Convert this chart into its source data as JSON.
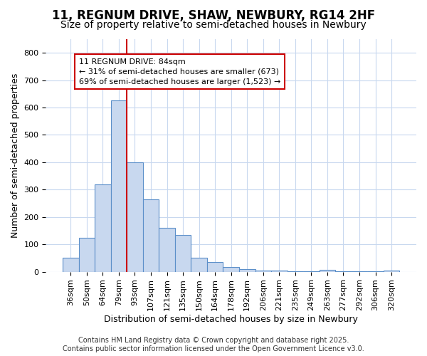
{
  "title_line1": "11, REGNUM DRIVE, SHAW, NEWBURY, RG14 2HF",
  "title_line2": "Size of property relative to semi-detached houses in Newbury",
  "xlabel": "Distribution of semi-detached houses by size in Newbury",
  "ylabel": "Number of semi-detached properties",
  "categories": [
    "36sqm",
    "50sqm",
    "64sqm",
    "79sqm",
    "93sqm",
    "107sqm",
    "121sqm",
    "135sqm",
    "150sqm",
    "164sqm",
    "178sqm",
    "192sqm",
    "206sqm",
    "221sqm",
    "235sqm",
    "249sqm",
    "263sqm",
    "277sqm",
    "292sqm",
    "306sqm",
    "320sqm"
  ],
  "values": [
    50,
    125,
    320,
    625,
    400,
    265,
    160,
    133,
    52,
    35,
    18,
    10,
    4,
    3,
    2,
    1,
    7,
    1,
    1,
    1,
    5
  ],
  "bar_color": "#c8d8ef",
  "bar_edge_color": "#5b8fc9",
  "grid_color": "#c8d8ef",
  "background_color": "#ffffff",
  "red_line_color": "#cc0000",
  "annotation_text": "11 REGNUM DRIVE: 84sqm\n← 31% of semi-detached houses are smaller (673)\n69% of semi-detached houses are larger (1,523) →",
  "annotation_box_color": "#ffffff",
  "annotation_box_edge": "#cc0000",
  "ylim": [
    0,
    850
  ],
  "yticks": [
    0,
    100,
    200,
    300,
    400,
    500,
    600,
    700,
    800
  ],
  "footer_line1": "Contains HM Land Registry data © Crown copyright and database right 2025.",
  "footer_line2": "Contains public sector information licensed under the Open Government Licence v3.0.",
  "title_fontsize": 12,
  "subtitle_fontsize": 10,
  "axis_label_fontsize": 9,
  "tick_fontsize": 8,
  "annotation_fontsize": 8,
  "footer_fontsize": 7
}
